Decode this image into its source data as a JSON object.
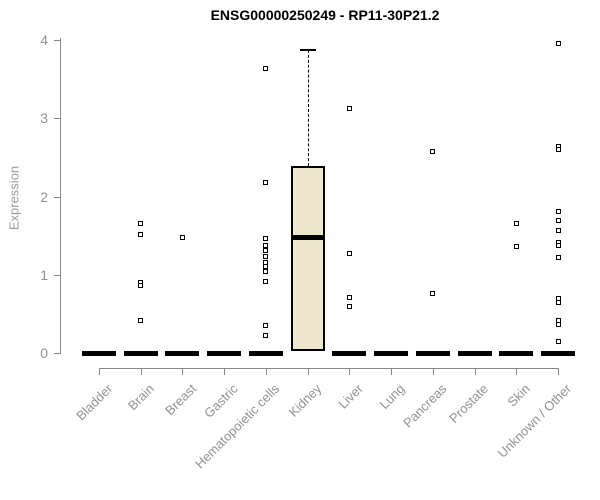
{
  "chart_data": {
    "type": "boxplot",
    "title": "ENSG00000250249 - RP11-30P21.2",
    "ylabel": "Expression",
    "ylim": [
      0,
      4
    ],
    "yticks": [
      0,
      1,
      2,
      3,
      4
    ],
    "grid": false,
    "legend": "none",
    "categories": [
      "Bladder",
      "Brain",
      "Breast",
      "Gastric",
      "Hematopoietic cells",
      "Kidney",
      "Liver",
      "Lung",
      "Pancreas",
      "Prostate",
      "Skin",
      "Unknown / Other"
    ],
    "groups": [
      {
        "label": "Bladder",
        "median": 0,
        "zero_median_bar": true,
        "points": []
      },
      {
        "label": "Brain",
        "median": 0,
        "zero_median_bar": true,
        "points": [
          1.65,
          1.51,
          0.9,
          0.86,
          0.41
        ]
      },
      {
        "label": "Breast",
        "median": 0,
        "zero_median_bar": true,
        "points": [
          1.47
        ]
      },
      {
        "label": "Gastric",
        "median": 0,
        "zero_median_bar": true,
        "points": []
      },
      {
        "label": "Hematopoietic cells",
        "median": 0,
        "zero_median_bar": true,
        "points": [
          3.63,
          2.18,
          1.46,
          1.38,
          1.31,
          1.23,
          1.16,
          1.1,
          1.04,
          0.92,
          0.35,
          0.23
        ]
      },
      {
        "label": "Kidney",
        "zero_median_bar": false,
        "points": [],
        "box": {
          "whisker_high": 3.87,
          "q3": 2.39,
          "median": 1.48,
          "q1": 0.02
        }
      },
      {
        "label": "Liver",
        "median": 0,
        "zero_median_bar": true,
        "points": [
          3.13,
          1.27,
          0.71,
          0.6
        ]
      },
      {
        "label": "Lung",
        "median": 0,
        "zero_median_bar": true,
        "points": []
      },
      {
        "label": "Pancreas",
        "median": 0,
        "zero_median_bar": true,
        "points": [
          2.57,
          0.76
        ]
      },
      {
        "label": "Prostate",
        "median": 0,
        "zero_median_bar": true,
        "points": []
      },
      {
        "label": "Skin",
        "median": 0,
        "zero_median_bar": true,
        "points": [
          1.65,
          1.36
        ]
      },
      {
        "label": "Unknown / Other",
        "median": 0,
        "zero_median_bar": true,
        "points": [
          3.95,
          2.64,
          2.6,
          1.81,
          1.69,
          1.57,
          1.41,
          1.37,
          1.22,
          0.7,
          0.64,
          0.42,
          0.36,
          0.15
        ]
      }
    ],
    "colors": {
      "box_fill": "#EDE7CE",
      "box_border": "#000000",
      "median_line": "#000000",
      "point_border": "#000000",
      "point_fill": "#FFFFFF",
      "axis_line": "#878787",
      "axis_text": "#929292",
      "title_text": "#000000"
    }
  }
}
